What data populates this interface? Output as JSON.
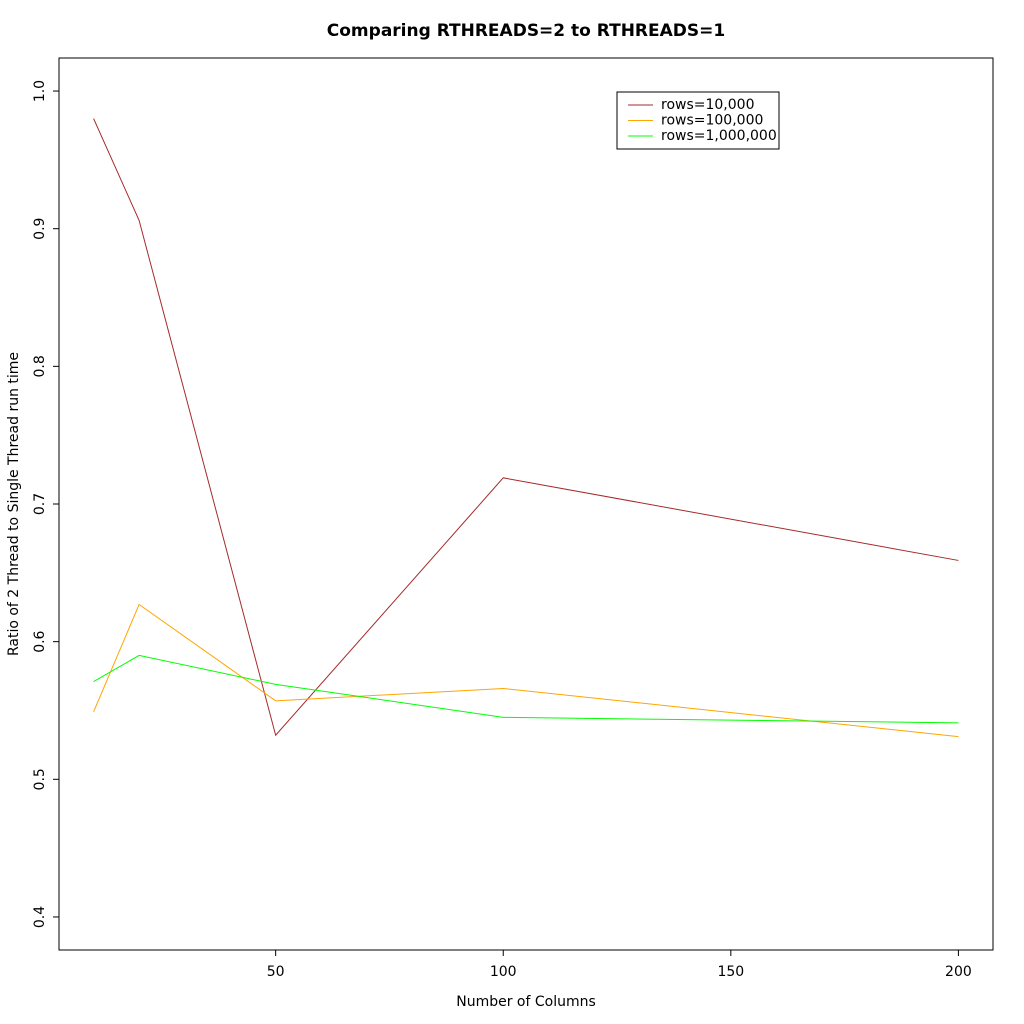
{
  "chart_data": {
    "type": "line",
    "title": "Comparing RTHREADS=2 to RTHREADS=1",
    "x_label": "Number of Columns",
    "y_label": "Ratio of 2 Thread to Single Thread run time",
    "x": [
      10,
      20,
      50,
      100,
      200
    ],
    "series": [
      {
        "name": "rows=10,000",
        "color": "#a52a2a",
        "values": [
          0.98,
          0.906,
          0.532,
          0.719,
          0.659
        ]
      },
      {
        "name": "rows=100,000",
        "color": "#ffa500",
        "values": [
          0.549,
          0.627,
          0.557,
          0.566,
          0.531
        ]
      },
      {
        "name": "rows=1,000,000",
        "color": "#00ff00",
        "values": [
          0.571,
          0.59,
          0.569,
          0.545,
          0.541
        ]
      }
    ],
    "xlim": [
      2.4,
      207.6
    ],
    "xticks": [
      50,
      100,
      150,
      200
    ],
    "ylim": [
      0.376,
      1.024
    ],
    "yticks": [
      0.4,
      0.5,
      0.6,
      0.7,
      0.8,
      0.9,
      {
        "value": 1,
        "label": "1.0"
      }
    ],
    "legend": "top-right",
    "grid": false
  }
}
